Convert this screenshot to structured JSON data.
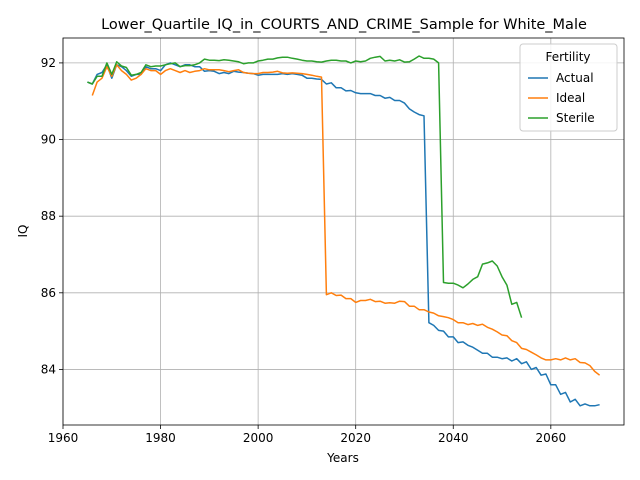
{
  "chart_data": {
    "type": "line",
    "title": "Lower_Quartile_IQ_in_COURTS_AND_CRIME_Sample for White_Male",
    "xlabel": "Years",
    "ylabel": "IQ",
    "xlim": [
      1960,
      2075
    ],
    "ylim": [
      82.55,
      92.65
    ],
    "xticks": [
      1960,
      1980,
      2000,
      2020,
      2040,
      2060
    ],
    "yticks": [
      84,
      86,
      88,
      90,
      92
    ],
    "grid": true,
    "legend": {
      "title": "Fertility",
      "placement": "top-right"
    },
    "series": [
      {
        "name": "Actual",
        "color": "#1f77b4",
        "x": [
          1965,
          1966,
          1967,
          1968,
          1969,
          1970,
          1971,
          1972,
          1973,
          1974,
          1975,
          1976,
          1977,
          1978,
          1979,
          1980,
          1981,
          1982,
          1983,
          1984,
          1985,
          1986,
          1987,
          1988,
          1989,
          1990,
          1991,
          1992,
          1993,
          1994,
          1995,
          1996,
          1997,
          1998,
          1999,
          2000,
          2001,
          2002,
          2003,
          2004,
          2005,
          2006,
          2007,
          2008,
          2009,
          2010,
          2011,
          2012,
          2013,
          2014,
          2015,
          2016,
          2017,
          2018,
          2019,
          2020,
          2021,
          2022,
          2023,
          2024,
          2025,
          2026,
          2027,
          2028,
          2029,
          2030,
          2031,
          2032,
          2033,
          2034,
          2035,
          2036,
          2037,
          2038,
          2039,
          2040,
          2041,
          2042,
          2043,
          2044,
          2045,
          2046,
          2047,
          2048,
          2049,
          2050,
          2051,
          2052,
          2053,
          2054,
          2055,
          2056,
          2057,
          2058,
          2059,
          2060,
          2061,
          2062,
          2063,
          2064,
          2065,
          2066,
          2067,
          2068,
          2069,
          2070
        ],
        "y": [
          91.5,
          91.45,
          91.7,
          91.75,
          91.95,
          91.6,
          91.95,
          91.9,
          91.8,
          91.65,
          91.7,
          91.7,
          91.9,
          91.85,
          91.85,
          91.8,
          91.95,
          92.0,
          91.95,
          91.9,
          91.95,
          91.95,
          91.9,
          91.9,
          91.78,
          91.8,
          91.78,
          91.72,
          91.75,
          91.72,
          91.78,
          91.76,
          91.75,
          91.73,
          91.72,
          91.68,
          91.7,
          91.7,
          91.7,
          91.7,
          91.72,
          91.7,
          91.72,
          91.7,
          91.68,
          91.6,
          91.6,
          91.58,
          91.57,
          91.45,
          91.48,
          91.35,
          91.35,
          91.27,
          91.28,
          91.22,
          91.2,
          91.2,
          91.2,
          91.15,
          91.15,
          91.08,
          91.1,
          91.02,
          91.02,
          90.95,
          90.8,
          90.72,
          90.65,
          90.62,
          85.22,
          85.15,
          85.02,
          85.0,
          84.85,
          84.85,
          84.7,
          84.72,
          84.63,
          84.58,
          84.5,
          84.42,
          84.42,
          84.32,
          84.32,
          84.28,
          84.3,
          84.22,
          84.28,
          84.15,
          84.2,
          84.0,
          84.05,
          83.85,
          83.88,
          83.6,
          83.6,
          83.35,
          83.4,
          83.15,
          83.22,
          83.05,
          83.1,
          83.05,
          83.05,
          83.08
        ]
      },
      {
        "name": "Ideal",
        "color": "#ff7f0e",
        "x": [
          1966,
          1967,
          1968,
          1969,
          1970,
          1971,
          1972,
          1973,
          1974,
          1975,
          1976,
          1977,
          1978,
          1979,
          1980,
          1981,
          1982,
          1983,
          1984,
          1985,
          1986,
          1987,
          1988,
          1989,
          1990,
          1991,
          1992,
          1993,
          1994,
          1995,
          1996,
          1997,
          1998,
          1999,
          2000,
          2001,
          2002,
          2003,
          2004,
          2005,
          2006,
          2007,
          2008,
          2009,
          2010,
          2011,
          2012,
          2013,
          2014,
          2015,
          2016,
          2017,
          2018,
          2019,
          2020,
          2021,
          2022,
          2023,
          2024,
          2025,
          2026,
          2027,
          2028,
          2029,
          2030,
          2031,
          2032,
          2033,
          2034,
          2035,
          2036,
          2037,
          2038,
          2039,
          2040,
          2041,
          2042,
          2043,
          2044,
          2045,
          2046,
          2047,
          2048,
          2049,
          2050,
          2051,
          2052,
          2053,
          2054,
          2055,
          2056,
          2057,
          2058,
          2059,
          2060,
          2061,
          2062,
          2063,
          2064,
          2065,
          2066,
          2067,
          2068,
          2069,
          2070
        ],
        "y": [
          91.15,
          91.5,
          91.6,
          91.9,
          91.65,
          91.95,
          91.8,
          91.7,
          91.55,
          91.6,
          91.7,
          91.85,
          91.8,
          91.8,
          91.7,
          91.8,
          91.85,
          91.8,
          91.75,
          91.8,
          91.75,
          91.78,
          91.8,
          91.85,
          91.82,
          91.82,
          91.82,
          91.8,
          91.77,
          91.8,
          91.82,
          91.75,
          91.73,
          91.72,
          91.72,
          91.75,
          91.75,
          91.76,
          91.78,
          91.74,
          91.73,
          91.74,
          91.73,
          91.72,
          91.7,
          91.68,
          91.65,
          91.63,
          85.95,
          86.0,
          85.93,
          85.94,
          85.85,
          85.85,
          85.75,
          85.8,
          85.8,
          85.83,
          85.77,
          85.78,
          85.73,
          85.74,
          85.73,
          85.78,
          85.77,
          85.65,
          85.65,
          85.56,
          85.56,
          85.5,
          85.47,
          85.4,
          85.38,
          85.35,
          85.3,
          85.22,
          85.22,
          85.17,
          85.2,
          85.15,
          85.18,
          85.1,
          85.05,
          84.98,
          84.9,
          84.88,
          84.75,
          84.7,
          84.55,
          84.52,
          84.45,
          84.38,
          84.3,
          84.25,
          84.25,
          84.28,
          84.25,
          84.3,
          84.25,
          84.28,
          84.18,
          84.17,
          84.1,
          83.95,
          83.85
        ]
      },
      {
        "name": "Sterile",
        "color": "#2ca02c",
        "x": [
          1965,
          1966,
          1967,
          1968,
          1969,
          1970,
          1971,
          1972,
          1973,
          1974,
          1975,
          1976,
          1977,
          1978,
          1979,
          1980,
          1981,
          1982,
          1983,
          1984,
          1985,
          1986,
          1987,
          1988,
          1989,
          1990,
          1991,
          1992,
          1993,
          1994,
          1995,
          1996,
          1997,
          1998,
          1999,
          2000,
          2001,
          2002,
          2003,
          2004,
          2005,
          2006,
          2007,
          2008,
          2009,
          2010,
          2011,
          2012,
          2013,
          2014,
          2015,
          2016,
          2017,
          2018,
          2019,
          2020,
          2021,
          2022,
          2023,
          2024,
          2025,
          2026,
          2027,
          2028,
          2029,
          2030,
          2031,
          2032,
          2033,
          2034,
          2035,
          2036,
          2037,
          2038,
          2039,
          2040,
          2041,
          2042,
          2043,
          2044,
          2045,
          2046,
          2047,
          2048,
          2049,
          2050,
          2051,
          2052,
          2053,
          2054
        ],
        "y": [
          91.5,
          91.45,
          91.65,
          91.65,
          92.0,
          91.7,
          92.03,
          91.92,
          91.88,
          91.68,
          91.7,
          91.75,
          91.95,
          91.9,
          91.92,
          91.92,
          91.95,
          91.98,
          92.0,
          91.9,
          91.93,
          91.93,
          91.95,
          92.0,
          92.1,
          92.07,
          92.07,
          92.06,
          92.08,
          92.07,
          92.05,
          92.03,
          91.98,
          92.0,
          92.0,
          92.05,
          92.07,
          92.1,
          92.1,
          92.13,
          92.15,
          92.15,
          92.12,
          92.1,
          92.07,
          92.05,
          92.05,
          92.03,
          92.02,
          92.05,
          92.07,
          92.07,
          92.05,
          92.05,
          92.0,
          92.05,
          92.03,
          92.05,
          92.12,
          92.15,
          92.17,
          92.05,
          92.07,
          92.05,
          92.08,
          92.02,
          92.03,
          92.1,
          92.18,
          92.12,
          92.12,
          92.1,
          92.0,
          86.27,
          86.25,
          86.25,
          86.2,
          86.13,
          86.23,
          86.35,
          86.42,
          86.75,
          86.78,
          86.83,
          86.7,
          86.42,
          86.2,
          85.7,
          85.75,
          85.35
        ]
      }
    ]
  }
}
